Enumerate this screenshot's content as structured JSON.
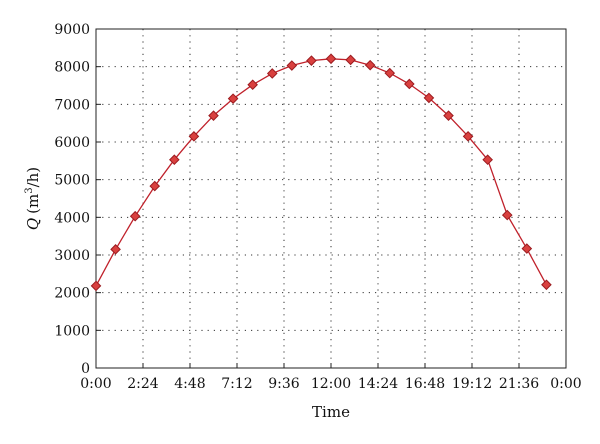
{
  "chart_data": {
    "type": "line",
    "xlabel": "Time",
    "ylabel": "Q",
    "ylabel_unit_main": "(m",
    "ylabel_unit_sup": "3",
    "ylabel_unit_end": "/h)",
    "xlim": [
      0,
      24
    ],
    "ylim": [
      0,
      9000
    ],
    "x_ticks": [
      {
        "value": 0,
        "label": "0:00"
      },
      {
        "value": 2.4,
        "label": "2:24"
      },
      {
        "value": 4.8,
        "label": "4:48"
      },
      {
        "value": 7.2,
        "label": "7:12"
      },
      {
        "value": 9.6,
        "label": "9:36"
      },
      {
        "value": 12,
        "label": "12:00"
      },
      {
        "value": 14.4,
        "label": "14:24"
      },
      {
        "value": 16.8,
        "label": "16:48"
      },
      {
        "value": 19.2,
        "label": "19:12"
      },
      {
        "value": 21.6,
        "label": "21:36"
      },
      {
        "value": 24,
        "label": "0:00"
      }
    ],
    "y_ticks": [
      0,
      1000,
      2000,
      3000,
      4000,
      5000,
      6000,
      7000,
      8000,
      9000
    ],
    "grid": true,
    "legend": "none",
    "colors": {
      "line": "#c0212b",
      "marker_fill": "#d9403f",
      "marker_stroke": "#9b1b1f"
    },
    "series": [
      {
        "x": [
          0,
          1,
          2,
          3,
          4,
          5,
          6,
          7,
          8,
          9,
          10,
          11,
          12,
          13,
          14,
          15,
          16,
          17,
          18,
          19,
          20,
          21,
          22,
          23,
          24
        ],
        "y": [
          2180,
          3150,
          4030,
          4830,
          5530,
          6150,
          6700,
          7150,
          7520,
          7820,
          8030,
          8160,
          8210,
          8180,
          8040,
          7830,
          7540,
          7170,
          6700,
          6150,
          5530,
          4060,
          3170,
          2210,
          null
        ]
      }
    ]
  }
}
